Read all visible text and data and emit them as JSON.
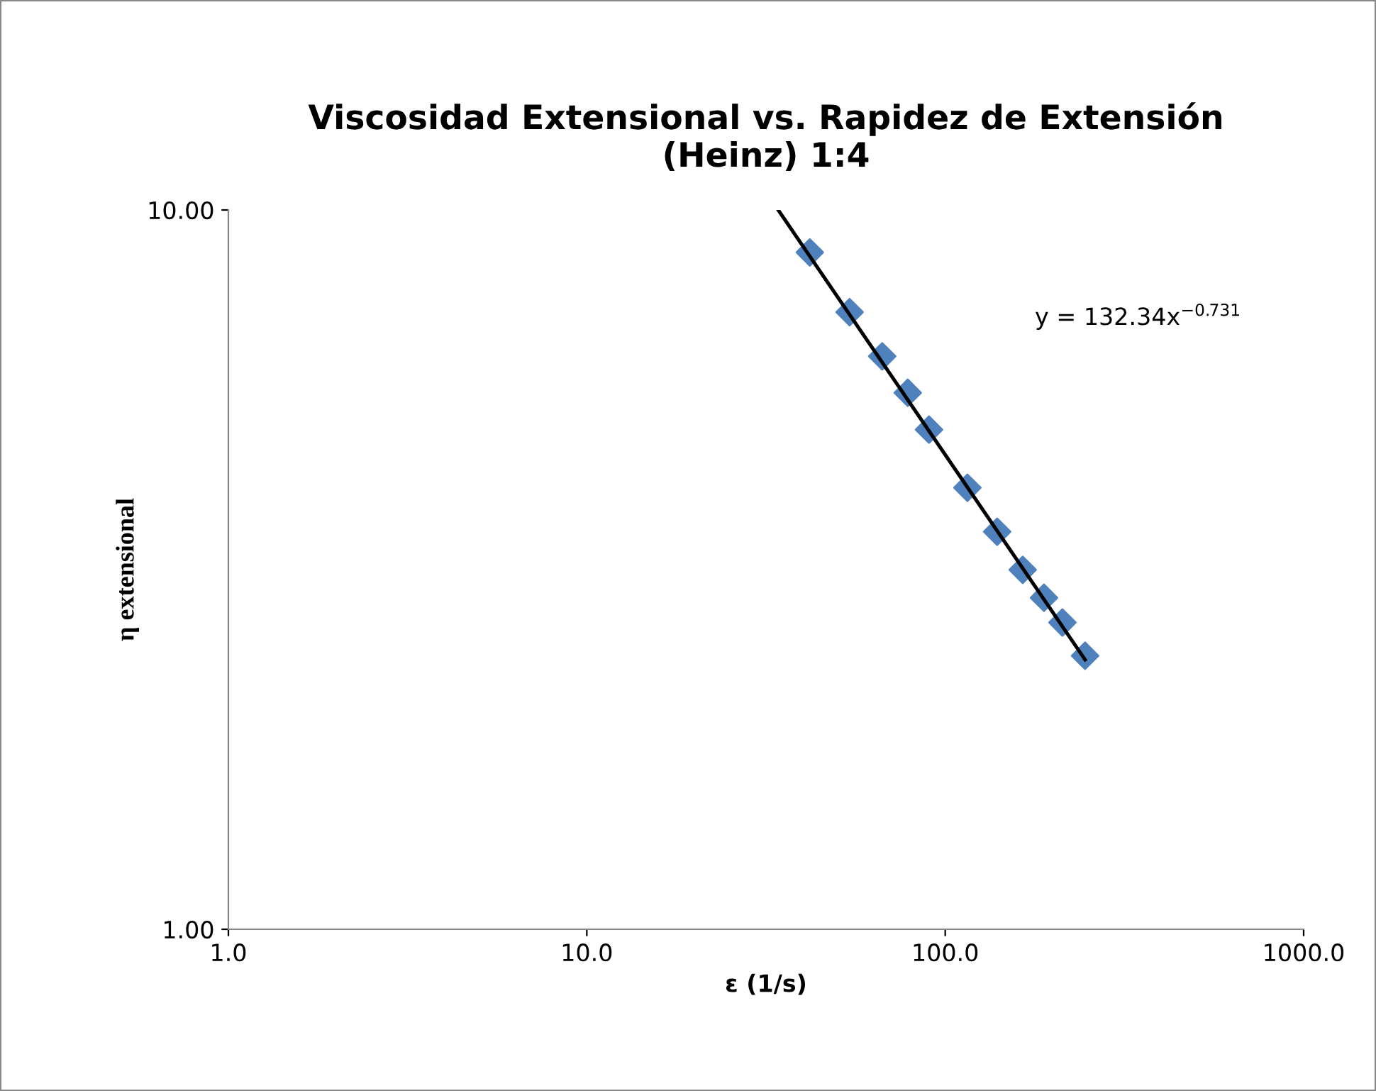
{
  "chart_data": {
    "type": "scatter",
    "title": "Viscosidad Extensional vs. Rapidez de Extensión\n(Heinz) 1:4",
    "xlabel": "ε (1/s)",
    "ylabel": "η extensional",
    "log": "xy",
    "xlim": [
      1,
      1000
    ],
    "ylim": [
      1,
      10
    ],
    "xticks": [
      {
        "value": 1,
        "label": "1.0"
      },
      {
        "value": 10,
        "label": "10.0"
      },
      {
        "value": 100,
        "label": "100.0"
      },
      {
        "value": 1000,
        "label": "1000.0"
      }
    ],
    "yticks": [
      {
        "value": 1,
        "label": "1.00"
      },
      {
        "value": 10,
        "label": "10.00"
      }
    ],
    "grid": false,
    "marker": "diamond",
    "annotations": [
      "y = 132.34x$^{−0.731}$"
    ],
    "series": [
      {
        "color": "#4f81bd",
        "x": [
          41.9,
          54.1,
          66.7,
          78.6,
          90.1,
          115.3,
          139.6,
          164.5,
          188.6,
          212.3,
          245.6
        ],
        "values": [
          8.73,
          7.21,
          6.26,
          5.57,
          4.95,
          4.11,
          3.57,
          3.16,
          2.89,
          2.67,
          2.4
        ]
      },
      {
        "type": "line",
        "color": "#000000",
        "line_style": "solid",
        "marker": "none",
        "x": [
          34.2,
          245.6
        ],
        "values": [
          10.0,
          2.37
        ]
      }
    ]
  }
}
